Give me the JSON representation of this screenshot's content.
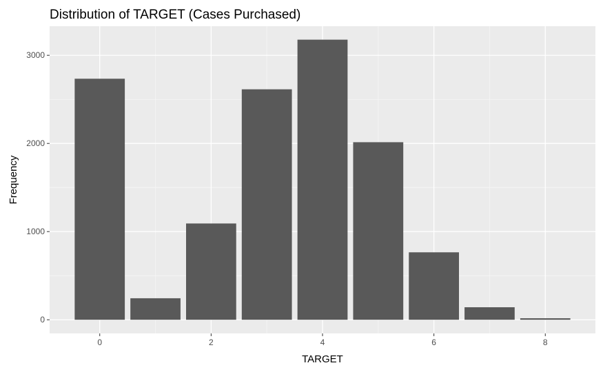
{
  "chart_data": {
    "type": "bar",
    "title": "Distribution of TARGET (Cases Purchased)",
    "xlabel": "TARGET",
    "ylabel": "Frequency",
    "x": [
      0,
      1,
      2,
      3,
      4,
      5,
      6,
      7,
      8
    ],
    "values": [
      2734,
      244,
      1092,
      2614,
      3177,
      2014,
      765,
      142,
      17
    ],
    "xlim": [
      -0.9,
      8.9
    ],
    "ylim": [
      -155,
      3330
    ],
    "xticks": [
      0,
      2,
      4,
      6,
      8
    ],
    "yticks": [
      0,
      1000,
      2000,
      3000
    ],
    "grid": true,
    "colors": {
      "bar": "#595959",
      "panel": "#ebebeb",
      "grid_major": "#ffffff",
      "grid_minor": "#f5f5f5"
    }
  }
}
